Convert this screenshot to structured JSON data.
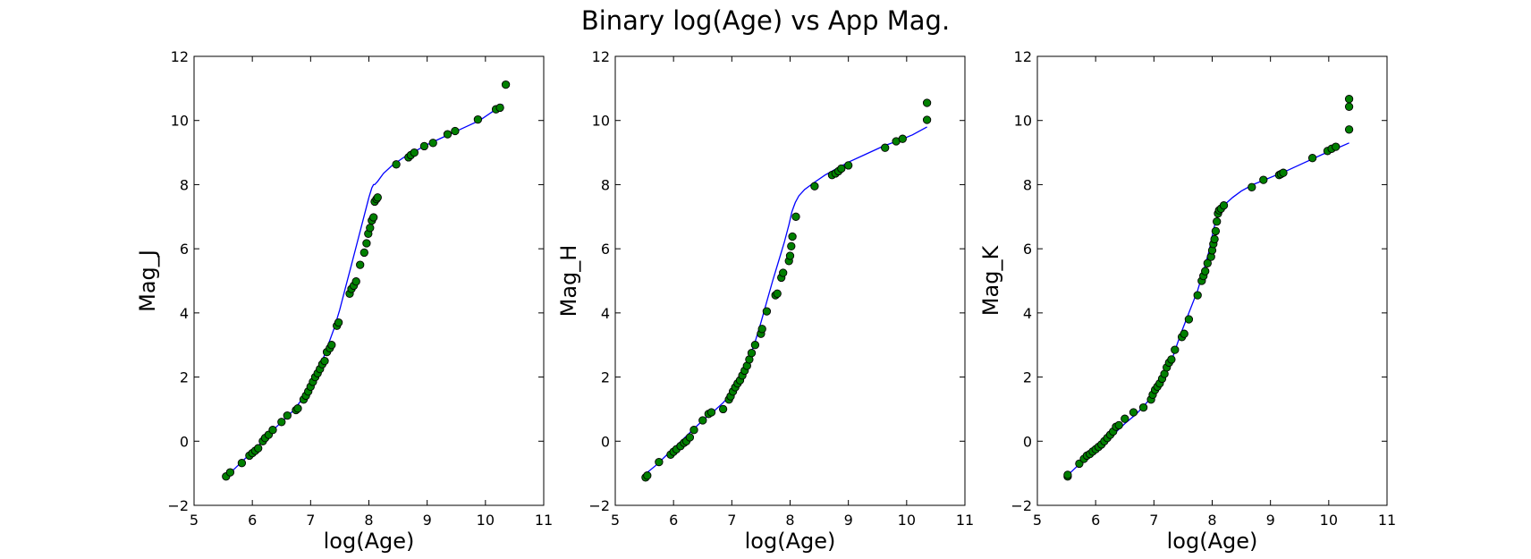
{
  "figure": {
    "title": "Binary log(Age) vs App Mag."
  },
  "colors": {
    "fit_line": "#0000ff",
    "points_fill": "#008000",
    "points_edge": "#000000",
    "axes": "#000000"
  },
  "chart_data": [
    {
      "type": "scatter",
      "title": "",
      "xlabel": "log(Age)",
      "ylabel": "Mag_J",
      "xlim": [
        5,
        11
      ],
      "ylim": [
        -2,
        12
      ],
      "xticks": [
        5,
        6,
        7,
        8,
        9,
        10,
        11
      ],
      "yticks": [
        -2,
        0,
        2,
        4,
        6,
        8,
        10,
        12
      ],
      "xtick_labels": [
        "5",
        "6",
        "7",
        "8",
        "9",
        "10",
        "11"
      ],
      "ytick_labels": [
        "−2",
        "0",
        "2",
        "4",
        "6",
        "8",
        "10",
        "12"
      ],
      "grid": false,
      "series": [
        {
          "kind": "fit-line",
          "x": [
            5.52,
            5.7,
            5.9,
            6.1,
            6.3,
            6.5,
            6.7,
            6.85,
            7.0,
            7.1,
            7.2,
            7.3,
            7.4,
            7.5,
            7.6,
            7.7,
            7.8,
            7.9,
            8.0,
            8.05,
            8.08,
            8.1,
            8.15,
            8.25,
            8.4,
            8.6,
            8.8,
            9.0,
            9.3,
            9.6,
            9.9,
            10.1,
            10.3
          ],
          "y": [
            -1.15,
            -0.85,
            -0.5,
            -0.15,
            0.25,
            0.6,
            0.95,
            1.3,
            1.75,
            2.15,
            2.5,
            3.0,
            3.5,
            4.1,
            4.8,
            5.5,
            6.2,
            6.9,
            7.6,
            7.9,
            8.0,
            8.0,
            8.1,
            8.35,
            8.6,
            8.85,
            9.05,
            9.25,
            9.5,
            9.75,
            10.0,
            10.25,
            10.5
          ]
        },
        {
          "kind": "points",
          "x": [
            5.55,
            5.62,
            5.82,
            5.95,
            6.0,
            6.05,
            6.1,
            6.18,
            6.22,
            6.28,
            6.35,
            6.5,
            6.6,
            6.75,
            6.78,
            6.88,
            6.92,
            6.96,
            7.0,
            7.04,
            7.08,
            7.12,
            7.16,
            7.2,
            7.24,
            7.28,
            7.33,
            7.36,
            7.45,
            7.48,
            7.67,
            7.7,
            7.74,
            7.78,
            7.85,
            7.92,
            7.96,
            7.99,
            8.02,
            8.05,
            8.08,
            8.1,
            8.13,
            8.15,
            8.47,
            8.68,
            8.72,
            8.78,
            8.95,
            9.1,
            9.35,
            9.48,
            9.87,
            10.18,
            10.25,
            10.35
          ],
          "y": [
            -1.1,
            -0.97,
            -0.68,
            -0.45,
            -0.37,
            -0.3,
            -0.22,
            0.0,
            0.1,
            0.2,
            0.35,
            0.6,
            0.8,
            0.97,
            1.02,
            1.3,
            1.42,
            1.55,
            1.7,
            1.85,
            2.0,
            2.12,
            2.25,
            2.4,
            2.5,
            2.78,
            2.9,
            3.0,
            3.6,
            3.7,
            4.6,
            4.75,
            4.85,
            4.98,
            5.5,
            5.88,
            6.17,
            6.47,
            6.65,
            6.88,
            6.98,
            7.47,
            7.55,
            7.6,
            8.63,
            8.85,
            8.92,
            9.0,
            9.2,
            9.3,
            9.57,
            9.67,
            10.03,
            10.35,
            10.4,
            11.12
          ]
        }
      ]
    },
    {
      "type": "scatter",
      "title": "",
      "xlabel": "log(Age)",
      "ylabel": "Mag_H",
      "xlim": [
        5,
        11
      ],
      "ylim": [
        -2,
        12
      ],
      "xticks": [
        5,
        6,
        7,
        8,
        9,
        10,
        11
      ],
      "yticks": [
        -2,
        0,
        2,
        4,
        6,
        8,
        10,
        12
      ],
      "xtick_labels": [
        "5",
        "6",
        "7",
        "8",
        "9",
        "10",
        "11"
      ],
      "ytick_labels": [
        "−2",
        "0",
        "2",
        "4",
        "6",
        "8",
        "10",
        "12"
      ],
      "grid": false,
      "series": [
        {
          "kind": "fit-line",
          "x": [
            5.5,
            5.7,
            5.9,
            6.1,
            6.3,
            6.5,
            6.7,
            6.85,
            7.0,
            7.1,
            7.2,
            7.3,
            7.4,
            7.5,
            7.6,
            7.7,
            7.8,
            7.9,
            7.98,
            8.03,
            8.06,
            8.09,
            8.15,
            8.25,
            8.4,
            8.6,
            8.8,
            9.0,
            9.3,
            9.6,
            9.9,
            10.1,
            10.35
          ],
          "y": [
            -1.05,
            -0.75,
            -0.4,
            -0.05,
            0.3,
            0.65,
            0.95,
            1.2,
            1.5,
            1.8,
            2.15,
            2.6,
            3.1,
            3.7,
            4.35,
            5.0,
            5.6,
            6.2,
            6.75,
            7.15,
            7.3,
            7.45,
            7.65,
            7.85,
            8.05,
            8.3,
            8.5,
            8.7,
            8.95,
            9.2,
            9.4,
            9.55,
            9.8
          ]
        },
        {
          "kind": "points",
          "x": [
            5.52,
            5.55,
            5.75,
            5.95,
            6.0,
            6.05,
            6.12,
            6.18,
            6.22,
            6.28,
            6.35,
            6.5,
            6.6,
            6.65,
            6.85,
            6.95,
            6.98,
            7.02,
            7.06,
            7.1,
            7.14,
            7.18,
            7.22,
            7.26,
            7.3,
            7.34,
            7.4,
            7.5,
            7.52,
            7.6,
            7.75,
            7.78,
            7.85,
            7.88,
            7.98,
            8.0,
            8.02,
            8.04,
            8.1,
            8.42,
            8.72,
            8.78,
            8.83,
            8.88,
            9.0,
            9.63,
            9.82,
            9.93,
            10.35,
            10.35
          ],
          "y": [
            -1.13,
            -1.07,
            -0.65,
            -0.42,
            -0.33,
            -0.25,
            -0.15,
            -0.05,
            0.0,
            0.12,
            0.35,
            0.65,
            0.85,
            0.9,
            1.0,
            1.3,
            1.4,
            1.55,
            1.68,
            1.8,
            1.9,
            2.05,
            2.2,
            2.35,
            2.55,
            2.75,
            3.0,
            3.35,
            3.5,
            4.05,
            4.55,
            4.6,
            5.1,
            5.25,
            5.62,
            5.78,
            6.08,
            6.38,
            7.0,
            7.95,
            8.3,
            8.35,
            8.42,
            8.5,
            8.6,
            9.15,
            9.35,
            9.43,
            10.02,
            10.55
          ]
        }
      ]
    },
    {
      "type": "scatter",
      "title": "",
      "xlabel": "log(Age)",
      "ylabel": "Mag_K",
      "xlim": [
        5,
        11
      ],
      "ylim": [
        -2,
        12
      ],
      "xticks": [
        5,
        6,
        7,
        8,
        9,
        10,
        11
      ],
      "yticks": [
        -2,
        0,
        2,
        4,
        6,
        8,
        10,
        12
      ],
      "xtick_labels": [
        "5",
        "6",
        "7",
        "8",
        "9",
        "10",
        "11"
      ],
      "ytick_labels": [
        "−2",
        "0",
        "2",
        "4",
        "6",
        "8",
        "10",
        "12"
      ],
      "grid": false,
      "series": [
        {
          "kind": "fit-line",
          "x": [
            5.5,
            5.7,
            5.9,
            6.1,
            6.3,
            6.5,
            6.7,
            6.85,
            7.0,
            7.15,
            7.3,
            7.45,
            7.6,
            7.75,
            7.85,
            7.95,
            8.0,
            8.05,
            8.1,
            8.2,
            8.35,
            8.5,
            8.7,
            8.9,
            9.1,
            9.3,
            9.6,
            9.9,
            10.1,
            10.35
          ],
          "y": [
            -1.1,
            -0.75,
            -0.45,
            -0.15,
            0.2,
            0.55,
            0.85,
            1.15,
            1.45,
            1.9,
            2.5,
            3.3,
            4.0,
            4.7,
            5.3,
            5.95,
            6.4,
            6.8,
            7.05,
            7.35,
            7.6,
            7.8,
            8.0,
            8.15,
            8.3,
            8.45,
            8.7,
            8.95,
            9.1,
            9.3
          ]
        },
        {
          "kind": "points",
          "x": [
            5.52,
            5.52,
            5.72,
            5.8,
            5.85,
            5.9,
            5.95,
            6.0,
            6.05,
            6.1,
            6.15,
            6.2,
            6.25,
            6.3,
            6.35,
            6.4,
            6.5,
            6.65,
            6.82,
            6.95,
            6.98,
            7.02,
            7.06,
            7.1,
            7.14,
            7.18,
            7.22,
            7.26,
            7.3,
            7.36,
            7.48,
            7.52,
            7.6,
            7.75,
            7.82,
            7.85,
            7.88,
            7.92,
            7.98,
            8.0,
            8.02,
            8.04,
            8.06,
            8.08,
            8.1,
            8.12,
            8.15,
            8.2,
            8.68,
            8.88,
            9.15,
            9.18,
            9.22,
            9.72,
            9.98,
            10.05,
            10.12,
            10.35,
            10.35,
            10.35
          ],
          "y": [
            -1.1,
            -1.05,
            -0.7,
            -0.55,
            -0.45,
            -0.4,
            -0.32,
            -0.25,
            -0.18,
            -0.1,
            0.0,
            0.1,
            0.2,
            0.3,
            0.45,
            0.5,
            0.7,
            0.9,
            1.05,
            1.3,
            1.45,
            1.6,
            1.7,
            1.8,
            1.95,
            2.1,
            2.3,
            2.45,
            2.55,
            2.85,
            3.25,
            3.35,
            3.8,
            4.55,
            5.0,
            5.15,
            5.3,
            5.55,
            5.75,
            5.95,
            6.15,
            6.3,
            6.55,
            6.85,
            7.1,
            7.2,
            7.25,
            7.35,
            7.92,
            8.15,
            8.3,
            8.33,
            8.37,
            8.83,
            9.05,
            9.12,
            9.18,
            9.72,
            10.43,
            10.67
          ]
        }
      ]
    }
  ]
}
